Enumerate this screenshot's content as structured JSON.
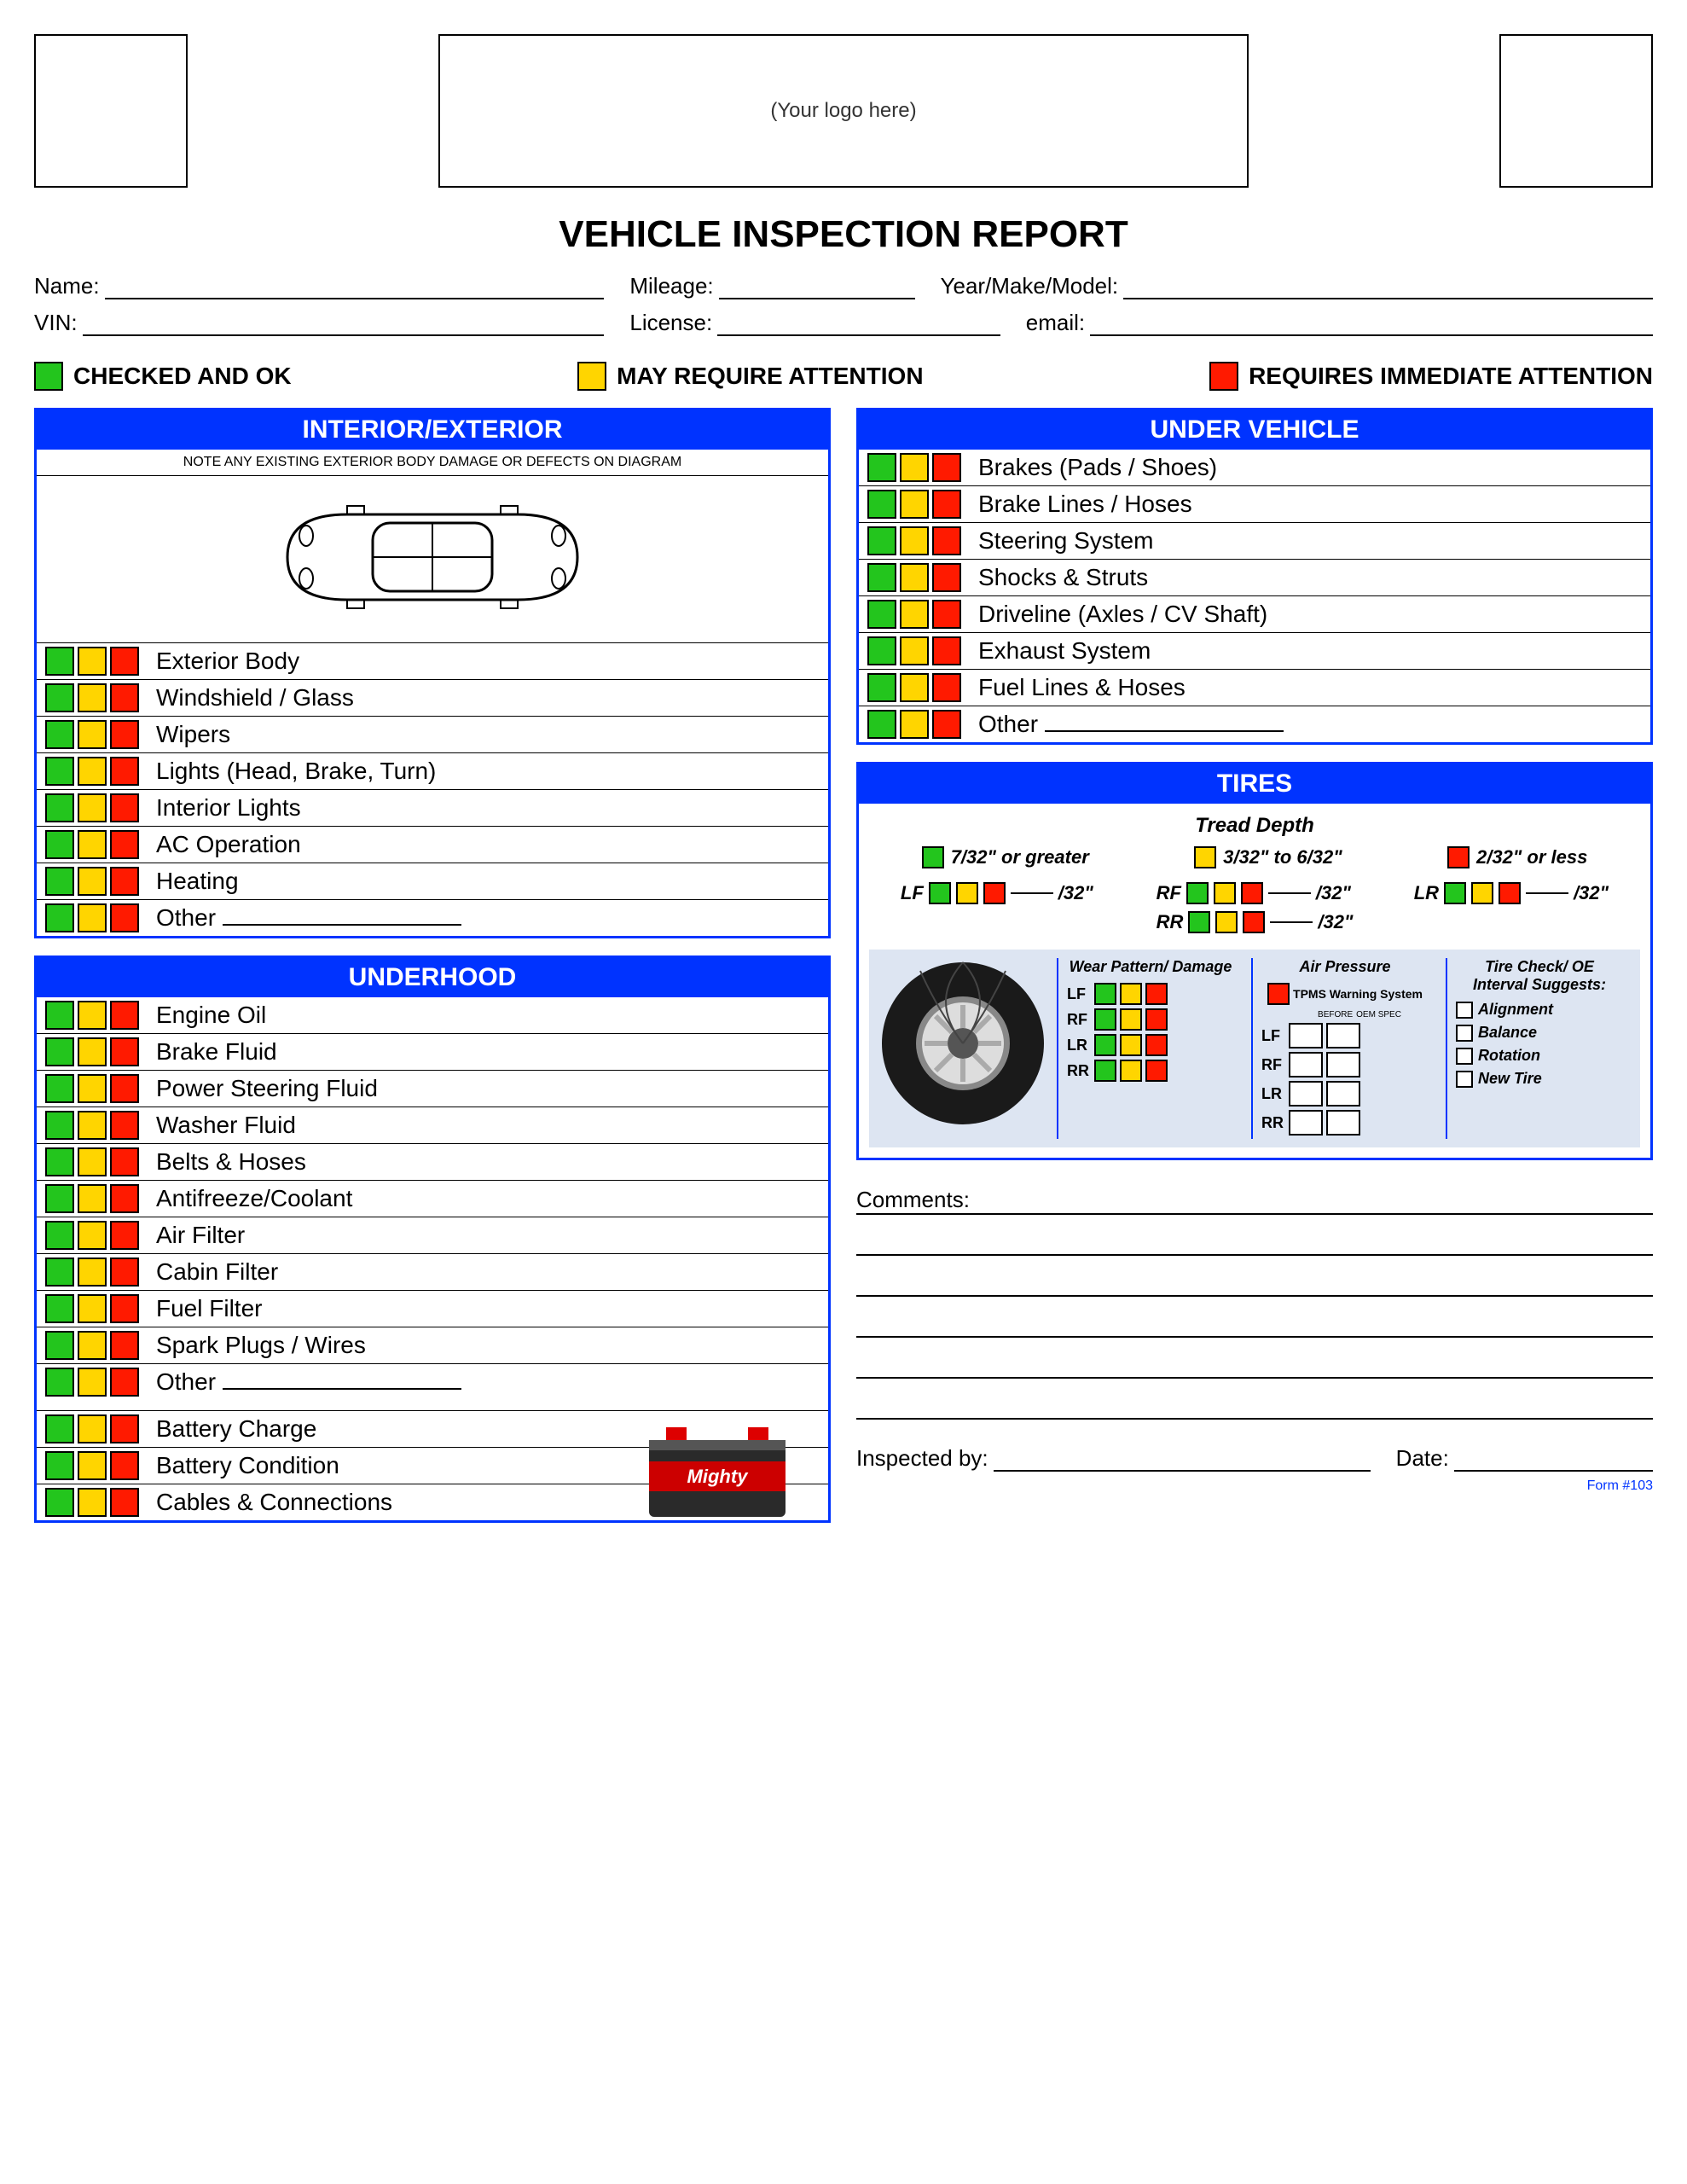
{
  "logo_placeholder": "(Your logo here)",
  "title": "VEHICLE INSPECTION REPORT",
  "fields": {
    "name": "Name:",
    "mileage": "Mileage:",
    "ymm": "Year/Make/Model:",
    "vin": "VIN:",
    "license": "License:",
    "email": "email:"
  },
  "legend": {
    "ok": "CHECKED AND OK",
    "may": "MAY REQUIRE ATTENTION",
    "req": "REQUIRES IMMEDIATE ATTENTION"
  },
  "colors": {
    "green": "#23c51d",
    "yellow": "#ffd500",
    "red": "#ff1a00",
    "blue": "#0033ff",
    "tire_bg": "#dde5f2"
  },
  "sections": {
    "interior": {
      "title": "INTERIOR/EXTERIOR",
      "note": "NOTE ANY EXISTING EXTERIOR BODY DAMAGE OR DEFECTS ON DIAGRAM",
      "items": [
        "Exterior Body",
        "Windshield / Glass",
        "Wipers",
        "Lights (Head, Brake, Turn)",
        "Interior Lights",
        "AC Operation",
        "Heating",
        "Other"
      ]
    },
    "underhood": {
      "title": "UNDERHOOD",
      "items": [
        "Engine Oil",
        "Brake Fluid",
        "Power Steering Fluid",
        "Washer Fluid",
        "Belts & Hoses",
        "Antifreeze/Coolant",
        "Air Filter",
        "Cabin Filter",
        "Fuel Filter",
        "Spark Plugs / Wires",
        "Other"
      ],
      "battery_items": [
        "Battery Charge",
        "Battery Condition",
        "Cables & Connections"
      ]
    },
    "under_vehicle": {
      "title": "UNDER VEHICLE",
      "items": [
        "Brakes (Pads / Shoes)",
        "Brake Lines / Hoses",
        "Steering System",
        "Shocks & Struts",
        "Driveline (Axles / CV Shaft)",
        "Exhaust System",
        "Fuel Lines & Hoses",
        "Other"
      ]
    },
    "tires": {
      "title": "TIRES",
      "tread_label": "Tread Depth",
      "legend": {
        "g": "7/32\" or greater",
        "y": "3/32\" to 6/32\"",
        "r": "2/32\" or less"
      },
      "positions": [
        "LF",
        "RF",
        "LR",
        "RR"
      ],
      "depth_unit": "/32\"",
      "wear_title": "Wear Pattern/\nDamage",
      "air_title": "Air Pressure",
      "tpms": "TPMS Warning System",
      "air_cols": {
        "before": "BEFORE",
        "spec": "OEM SPEC"
      },
      "check_title": "Tire Check/\nOE Interval Suggests:",
      "checks": [
        "Alignment",
        "Balance",
        "Rotation",
        "New Tire"
      ]
    }
  },
  "comments_label": "Comments:",
  "inspected_label": "Inspected by:",
  "date_label": "Date:",
  "form_num": "Form #103"
}
